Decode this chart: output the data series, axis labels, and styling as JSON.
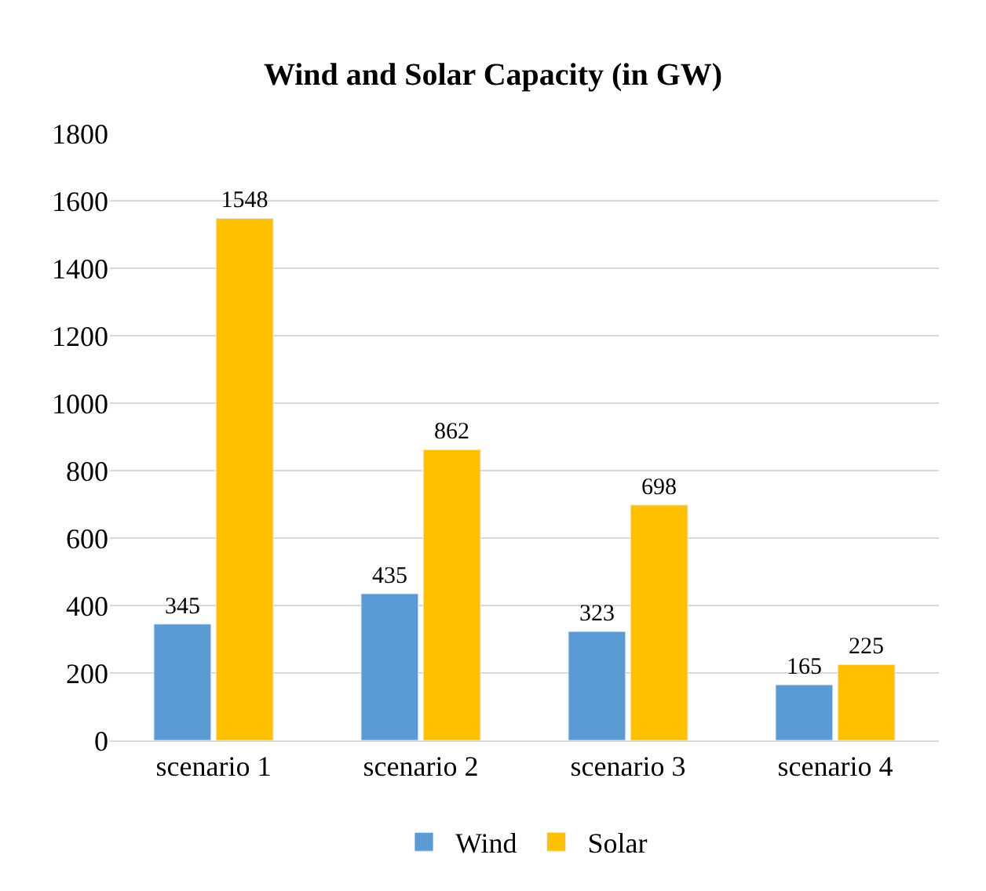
{
  "chart_data": {
    "type": "bar",
    "title": "Wind and Solar Capacity (in GW)",
    "categories": [
      "scenario 1",
      "scenario 2",
      "scenario 3",
      "scenario 4"
    ],
    "series": [
      {
        "name": "Wind",
        "color": "#5b9bd5",
        "values": [
          345,
          435,
          323,
          165
        ]
      },
      {
        "name": "Solar",
        "color": "#ffc000",
        "values": [
          1548,
          862,
          698,
          225
        ]
      }
    ],
    "ylim": [
      0,
      1800
    ],
    "yticks": [
      0,
      200,
      400,
      600,
      800,
      1000,
      1200,
      1400,
      1600,
      1800
    ],
    "grid": "y",
    "legend": "bottom",
    "data_labels": true
  }
}
